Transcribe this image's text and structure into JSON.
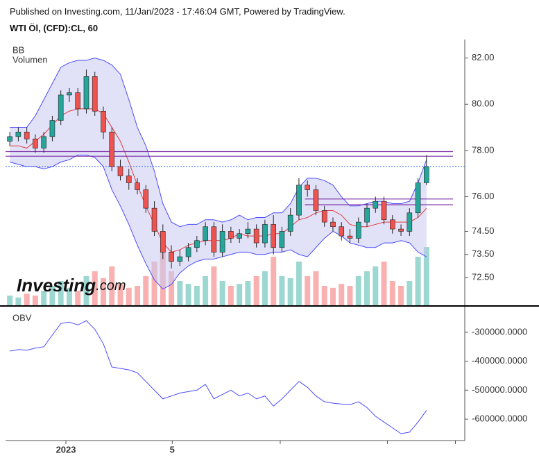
{
  "header": {
    "published": "Published on Investing.com, 11/Jan/2023 - 17:46:04 GMT, Powered by TradingView.",
    "symbol": "WTI Öl, (CFD):CL, 60"
  },
  "logo": {
    "brand": "Investing",
    "suffix": ".com"
  },
  "chart_data": [
    {
      "type": "candlestick",
      "legend": [
        "BB",
        "Volumen"
      ],
      "xlim": [
        0,
        54
      ],
      "xticks": [
        {
          "value": 7.1,
          "label": "2023"
        },
        {
          "value": 19.6,
          "label": "5"
        },
        {
          "value": 32.3,
          "label": null
        },
        {
          "value": 44.9,
          "label": null
        },
        {
          "value": 52.9,
          "label": null
        }
      ],
      "ylim": [
        71.3,
        82.8
      ],
      "yticks": [
        {
          "value": 82,
          "label": "82.00"
        },
        {
          "value": 80,
          "label": "80.00"
        },
        {
          "value": 78,
          "label": "78.00"
        },
        {
          "value": 76,
          "label": "76.00"
        },
        {
          "value": 74.5,
          "label": "74.50"
        },
        {
          "value": 73.5,
          "label": "73.50"
        },
        {
          "value": 72.5,
          "label": "72.50"
        }
      ],
      "up_color": "#26a69a",
      "down_color": "#ef5350",
      "open": [
        78.4,
        78.6,
        78.8,
        78.5,
        78.1,
        78.6,
        79.3,
        80.4,
        80.5,
        79.8,
        81.2,
        79.7,
        78.8,
        77.3,
        76.9,
        76.6,
        76.3,
        75.5,
        74.5,
        73.6,
        73.2,
        73.4,
        73.8,
        74.1,
        74.7,
        73.6,
        74.5,
        74.2,
        74.4,
        74.6,
        74.0,
        74.8,
        73.8,
        74.5,
        75.2,
        76.5,
        76.3,
        75.4,
        74.9,
        74.7,
        74.3,
        74.2,
        74.9,
        75.5,
        75.8,
        75.0,
        74.6,
        74.5,
        75.3,
        76.6
      ],
      "high": [
        78.8,
        79.0,
        79.0,
        78.7,
        78.8,
        79.5,
        80.6,
        80.7,
        80.7,
        81.5,
        81.4,
        79.9,
        79.0,
        77.6,
        77.2,
        76.8,
        76.5,
        75.8,
        74.8,
        73.9,
        73.7,
        74.0,
        74.3,
        74.9,
        74.9,
        74.8,
        74.7,
        74.6,
        74.9,
        74.8,
        75.0,
        75.2,
        74.7,
        75.5,
        76.8,
        76.7,
        76.5,
        75.6,
        75.1,
        74.9,
        74.6,
        75.1,
        75.7,
        76.0,
        76.0,
        75.2,
        74.8,
        75.5,
        76.8,
        77.8
      ],
      "low": [
        78.2,
        78.4,
        78.3,
        77.9,
        77.9,
        78.4,
        79.1,
        80.1,
        79.5,
        79.6,
        79.5,
        78.5,
        77.1,
        76.7,
        76.3,
        76.1,
        75.3,
        74.3,
        73.3,
        72.9,
        73.0,
        73.2,
        73.6,
        73.9,
        73.4,
        73.4,
        74.0,
        74.0,
        74.2,
        73.8,
        73.8,
        73.5,
        73.6,
        74.3,
        75.0,
        76.0,
        75.2,
        74.7,
        74.5,
        74.1,
        74.0,
        74.0,
        74.7,
        75.3,
        74.8,
        74.4,
        74.3,
        74.3,
        75.1,
        76.5
      ],
      "close": [
        78.6,
        78.8,
        78.5,
        78.1,
        78.6,
        79.3,
        80.4,
        80.5,
        79.8,
        81.2,
        79.7,
        78.8,
        77.3,
        76.9,
        76.6,
        76.3,
        75.5,
        74.5,
        73.6,
        73.2,
        73.4,
        73.8,
        74.1,
        74.7,
        73.6,
        74.5,
        74.2,
        74.4,
        74.6,
        74.0,
        74.8,
        73.8,
        74.5,
        75.2,
        76.5,
        76.3,
        75.4,
        74.9,
        74.7,
        74.3,
        74.2,
        74.9,
        75.5,
        75.8,
        75.0,
        74.6,
        74.5,
        75.3,
        76.6,
        77.3
      ],
      "bb_upper": [
        79.0,
        79.0,
        79.0,
        79.5,
        80.2,
        80.9,
        81.6,
        81.8,
        81.9,
        81.9,
        82.0,
        81.9,
        81.7,
        81.3,
        80.2,
        79.0,
        78.2,
        77.1,
        75.7,
        74.9,
        74.7,
        74.8,
        74.8,
        75.0,
        75.0,
        74.9,
        75.0,
        75.2,
        75.0,
        75.1,
        75.1,
        75.3,
        75.3,
        75.7,
        76.4,
        76.8,
        76.8,
        76.7,
        76.5,
        76.0,
        75.6,
        75.6,
        75.7,
        75.8,
        75.8,
        75.7,
        75.7,
        75.8,
        76.6,
        77.6
      ],
      "bb_lower": [
        77.5,
        77.4,
        77.3,
        77.3,
        77.2,
        77.3,
        77.5,
        77.6,
        77.8,
        77.8,
        77.7,
        77.3,
        76.3,
        75.6,
        74.8,
        73.9,
        73.1,
        72.4,
        72.0,
        72.2,
        72.7,
        73.0,
        73.2,
        73.3,
        73.3,
        73.4,
        73.5,
        73.6,
        73.6,
        73.5,
        73.5,
        73.6,
        73.6,
        73.7,
        73.5,
        73.4,
        73.8,
        74.2,
        74.5,
        74.3,
        74.0,
        73.9,
        73.8,
        73.8,
        74.0,
        74.0,
        74.1,
        74.0,
        73.6,
        73.4
      ],
      "bb_basis": [
        78.2,
        78.2,
        78.1,
        78.4,
        78.7,
        79.1,
        79.5,
        79.7,
        79.8,
        79.8,
        79.8,
        79.6,
        79.0,
        78.4,
        77.5,
        76.5,
        75.6,
        74.8,
        74.0,
        73.6,
        73.7,
        73.9,
        74.0,
        74.1,
        74.1,
        74.1,
        74.2,
        74.4,
        74.3,
        74.3,
        74.3,
        74.4,
        74.4,
        74.7,
        75.0,
        75.1,
        75.3,
        75.4,
        75.4,
        75.2,
        74.8,
        74.7,
        74.7,
        74.8,
        74.9,
        74.9,
        74.9,
        74.9,
        75.1,
        75.5
      ],
      "band_color": "#4b4bff",
      "basis_color": "#e03c3c",
      "volume": [
        10,
        8,
        12,
        10,
        15,
        20,
        25,
        18,
        15,
        30,
        35,
        28,
        40,
        22,
        18,
        20,
        30,
        45,
        55,
        35,
        25,
        22,
        20,
        30,
        40,
        25,
        20,
        22,
        25,
        30,
        35,
        50,
        30,
        28,
        45,
        30,
        35,
        20,
        18,
        22,
        20,
        30,
        35,
        40,
        45,
        25,
        20,
        25,
        50,
        60
      ],
      "vlim": [
        0,
        100
      ],
      "hlines": [
        {
          "value": 77.95,
          "start": 0
        },
        {
          "value": 77.75,
          "start": 0
        },
        {
          "value": 75.9,
          "start": 35.2
        },
        {
          "value": 75.65,
          "start": 35.2
        }
      ],
      "hline_color": "#7b2fa8",
      "last_price": 77.3,
      "last_color": "#2962ff"
    },
    {
      "type": "line",
      "legend": [
        "OBV"
      ],
      "color": "#4b4bff",
      "ylim": [
        -674000,
        -219000
      ],
      "yticks": [
        {
          "value": -300000,
          "label": "-300000.0000"
        },
        {
          "value": -400000,
          "label": "-400000.0000"
        },
        {
          "value": -500000,
          "label": "-500000.0000"
        },
        {
          "value": -600000,
          "label": "-600000.0000"
        }
      ],
      "values": [
        -365000,
        -360000,
        -362000,
        -355000,
        -350000,
        -310000,
        -270000,
        -265000,
        -275000,
        -260000,
        -290000,
        -340000,
        -420000,
        -425000,
        -430000,
        -440000,
        -470000,
        -500000,
        -530000,
        -520000,
        -510000,
        -505000,
        -500000,
        -480000,
        -530000,
        -515000,
        -500000,
        -520000,
        -510000,
        -530000,
        -520000,
        -555000,
        -530000,
        -500000,
        -470000,
        -490000,
        -520000,
        -540000,
        -545000,
        -548000,
        -550000,
        -540000,
        -560000,
        -590000,
        -610000,
        -630000,
        -650000,
        -645000,
        -610000,
        -570000
      ]
    }
  ]
}
